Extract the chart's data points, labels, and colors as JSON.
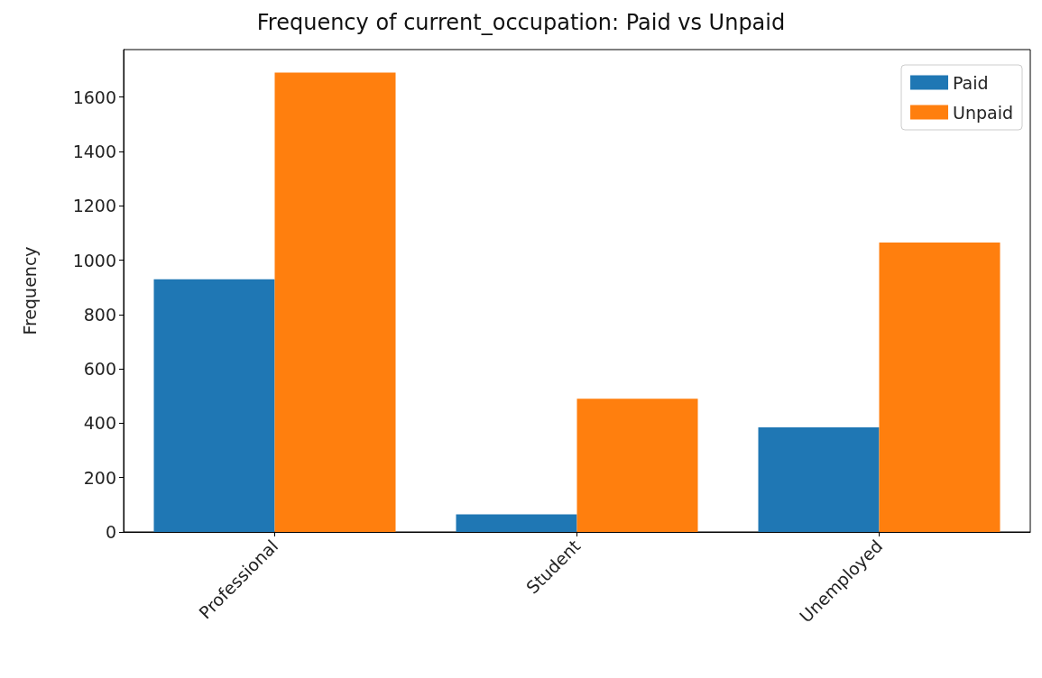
{
  "chart_data": {
    "type": "bar",
    "title": "Frequency of current_occupation: Paid vs Unpaid",
    "ylabel": "Frequency",
    "categories": [
      "Professional",
      "Student",
      "Unemployed"
    ],
    "series": [
      {
        "name": "Paid",
        "color": "#1f77b4",
        "values": [
          930,
          65,
          385
        ]
      },
      {
        "name": "Unpaid",
        "color": "#ff7f0e",
        "values": [
          1690,
          490,
          1065
        ]
      }
    ],
    "ylim": [
      0,
      1775
    ],
    "yticks": [
      0,
      200,
      400,
      600,
      800,
      1000,
      1200,
      1400,
      1600
    ],
    "grid": false,
    "legend": "top right"
  }
}
